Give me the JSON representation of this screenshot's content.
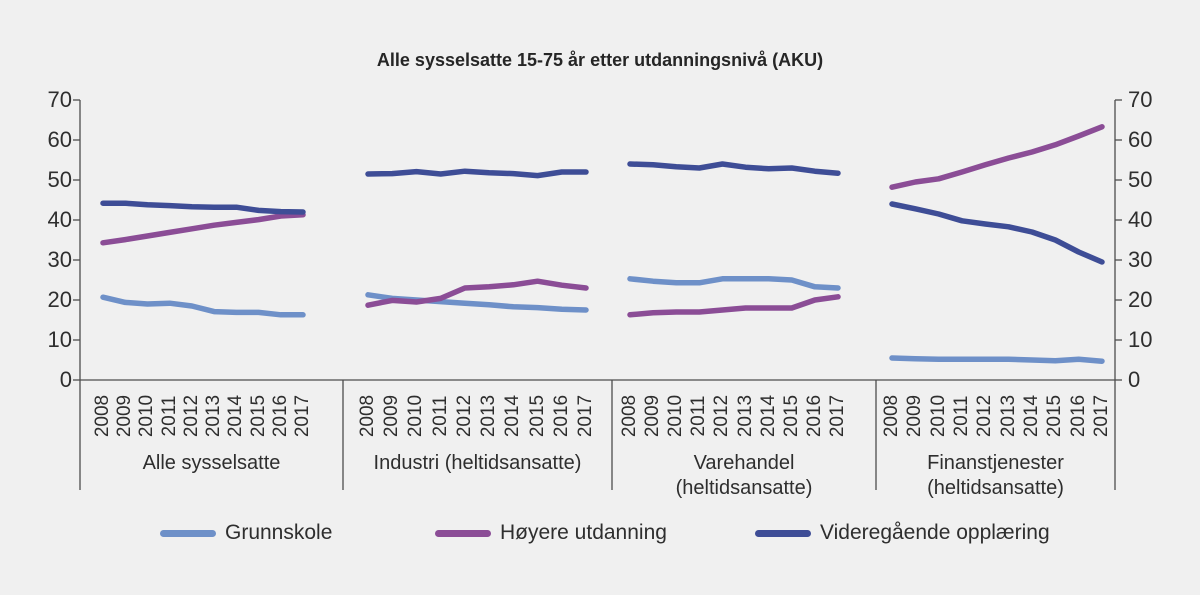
{
  "chart_data": {
    "type": "line",
    "title": "Alle sysselsatte 15-75 år etter utdanningsnivå (AKU)",
    "ylabel": "",
    "xlabel": "",
    "ylim": [
      0,
      70
    ],
    "y_ticks": [
      0,
      10,
      20,
      30,
      40,
      50,
      60,
      70
    ],
    "grid": false,
    "legend_position": "bottom",
    "x_years": [
      "2008",
      "2009",
      "2010",
      "2011",
      "2012",
      "2013",
      "2014",
      "2015",
      "2016",
      "2017"
    ],
    "panels": [
      {
        "label_lines": [
          "Alle sysselsatte"
        ],
        "series": [
          {
            "name": "Grunnskole",
            "values": [
              20.7,
              19.4,
              19.0,
              19.2,
              18.5,
              17.1,
              16.9,
              16.9,
              16.3,
              16.3
            ]
          },
          {
            "name": "Høyere utdanning",
            "values": [
              34.3,
              35.1,
              36.0,
              36.9,
              37.8,
              38.7,
              39.4,
              40.1,
              41.0,
              41.3
            ]
          },
          {
            "name": "Videregående opplæring",
            "values": [
              44.2,
              44.2,
              43.8,
              43.6,
              43.3,
              43.2,
              43.2,
              42.4,
              42.1,
              42.0
            ]
          }
        ]
      },
      {
        "label_lines": [
          "Industri (heltidsansatte)"
        ],
        "series": [
          {
            "name": "Grunnskole",
            "values": [
              21.3,
              20.4,
              20.0,
              19.6,
              19.2,
              18.8,
              18.3,
              18.1,
              17.7,
              17.5
            ]
          },
          {
            "name": "Høyere utdanning",
            "values": [
              18.7,
              19.9,
              19.5,
              20.4,
              23.0,
              23.3,
              23.8,
              24.7,
              23.7,
              23.0
            ]
          },
          {
            "name": "Videregående opplæring",
            "values": [
              51.5,
              51.6,
              52.1,
              51.5,
              52.2,
              51.8,
              51.6,
              51.1,
              52.0,
              52.0
            ]
          }
        ]
      },
      {
        "label_lines": [
          "Varehandel",
          "(heltidsansatte)"
        ],
        "series": [
          {
            "name": "Grunnskole",
            "values": [
              25.3,
              24.7,
              24.3,
              24.3,
              25.3,
              25.3,
              25.3,
              25.0,
              23.3,
              23.0
            ]
          },
          {
            "name": "Høyere utdanning",
            "values": [
              16.3,
              16.8,
              17.0,
              17.0,
              17.5,
              18.0,
              18.0,
              18.0,
              20.0,
              20.8
            ]
          },
          {
            "name": "Videregående opplæring",
            "values": [
              54.0,
              53.8,
              53.3,
              53.0,
              54.0,
              53.2,
              52.8,
              53.0,
              52.2,
              51.7
            ]
          }
        ]
      },
      {
        "label_lines": [
          "Finanstjenester",
          "(heltidsansatte)"
        ],
        "series": [
          {
            "name": "Grunnskole",
            "values": [
              5.5,
              5.3,
              5.2,
              5.2,
              5.2,
              5.2,
              5.0,
              4.8,
              5.2,
              4.7
            ]
          },
          {
            "name": "Høyere utdanning",
            "values": [
              48.2,
              49.5,
              50.3,
              52.0,
              53.8,
              55.5,
              57.0,
              58.8,
              61.0,
              63.3
            ]
          },
          {
            "name": "Videregående opplæring",
            "values": [
              44.0,
              42.8,
              41.5,
              39.8,
              39.0,
              38.3,
              37.0,
              35.0,
              32.0,
              29.5
            ]
          }
        ]
      }
    ]
  },
  "legend": {
    "items": [
      {
        "label": "Grunnskole",
        "color": "#6E90C8"
      },
      {
        "label": "Høyere utdanning",
        "color": "#8B4D96"
      },
      {
        "label": "Videregående opplæring",
        "color": "#3E4D96"
      }
    ]
  },
  "colors": {
    "background": "#F0F0F0",
    "axis": "#4D4D4D",
    "text": "#2E2E2E"
  }
}
